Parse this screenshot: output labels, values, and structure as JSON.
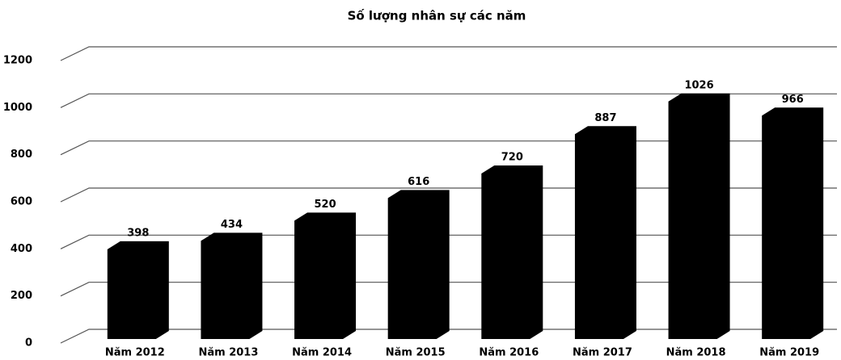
{
  "chart_data": {
    "type": "bar",
    "title": "Số lượng nhân sự các năm",
    "categories": [
      "Năm 2012",
      "Năm 2013",
      "Năm 2014",
      "Năm 2015",
      "Năm 2016",
      "Năm 2017",
      "Năm 2018",
      "Năm 2019"
    ],
    "values": [
      398,
      434,
      520,
      616,
      720,
      887,
      1026,
      966
    ],
    "color": "#000000",
    "ylim": [
      0,
      1200
    ],
    "yticks": [
      0,
      200,
      400,
      600,
      800,
      1000,
      1200
    ],
    "grid": true
  }
}
